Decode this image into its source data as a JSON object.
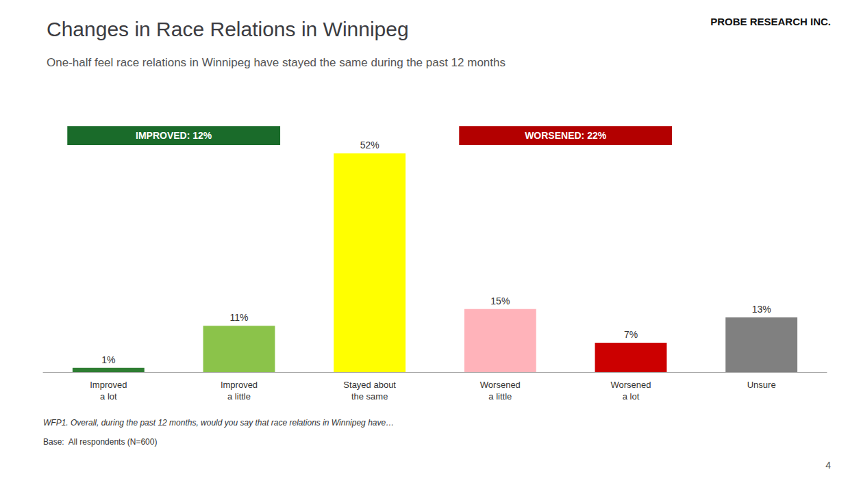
{
  "chart_data": {
    "type": "bar",
    "title": "Changes in Race Relations in Winnipeg",
    "subtitle": "One-half feel race relations in Winnipeg have stayed the same during the past 12 months",
    "categories": [
      "Improved\na lot",
      "Improved\na little",
      "Stayed about\nthe same",
      "Worsened\na little",
      "Worsened\na lot",
      "Unsure"
    ],
    "values": [
      1,
      11,
      52,
      15,
      7,
      13
    ],
    "value_labels": [
      "1%",
      "11%",
      "52%",
      "15%",
      "7%",
      "13%"
    ],
    "colors": [
      "#2e7d32",
      "#8bc34a",
      "#ffff00",
      "#ffb3ba",
      "#cc0000",
      "#808080"
    ],
    "ylim": [
      0,
      60
    ],
    "grid": false,
    "data_labels": true,
    "tick_labels": "x",
    "annotations": [
      {
        "text": "IMPROVED: 12%",
        "color": "#1a6b2a",
        "span": [
          "Improved\na lot",
          "Improved\na little"
        ]
      },
      {
        "text": "WORSENED: 22%",
        "color": "#b30000",
        "span": [
          "Worsened\na little",
          "Worsened\na lot"
        ]
      }
    ],
    "footnote": "WFP1. Overall, during the past 12 months, would you say that race relations in Winnipeg have…",
    "base_text": "Base:  All respondents (N=600)",
    "page_number": "4",
    "logo": "PROBE RESEARCH INC."
  }
}
